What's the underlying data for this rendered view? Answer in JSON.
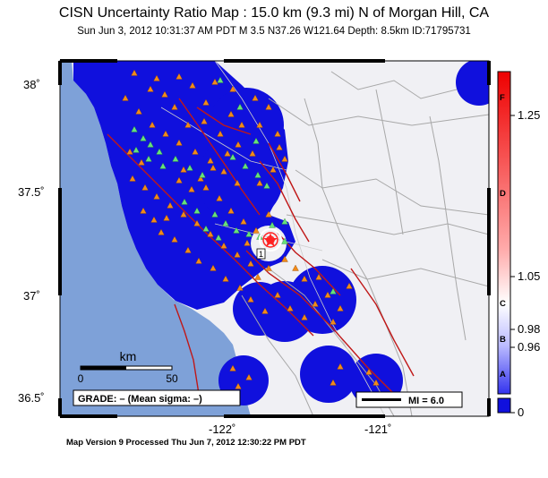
{
  "map": {
    "title": "CISN Uncertainty Ratio Map : 15.0 km (9.3 mi) N of Morgan Hill, CA",
    "subtitle": "Sun Jun  3, 2012 10:31:37 AM PDT    M 3.5    N37.26 W121.64    Depth: 8.5km    ID:71795731",
    "footer": "Map Version 9 Processed Thu Jun  7, 2012 12:30:22 PM PDT",
    "lat_labels": [
      "38˚",
      "37.5˚",
      "37˚",
      "36.5˚"
    ],
    "lon_labels": [
      "-122˚",
      "-121˚"
    ],
    "scale_bar": {
      "unit": "km",
      "min": "0",
      "max": "50"
    },
    "grade_text": "GRADE: – (Mean sigma: –)",
    "mi_legend": "MI = 6.0",
    "epicenter_label": "1",
    "colors": {
      "ocean": "#7ea1d8",
      "land": "#f0f0f4",
      "uncertainty_fill": "#1010dd",
      "roads": "#aaaaaa",
      "faults": "#c01818",
      "station_orange": "#f08a1a",
      "station_green": "#66e07a"
    }
  },
  "colorbar": {
    "grades": [
      "F",
      "D",
      "C",
      "B",
      "A"
    ],
    "values": [
      "1.25",
      "1.05",
      "0.98",
      "0.96",
      "0"
    ],
    "colors": {
      "top": "#ee1111",
      "middle": "#ffffff",
      "bottom": "#1111dd"
    }
  }
}
